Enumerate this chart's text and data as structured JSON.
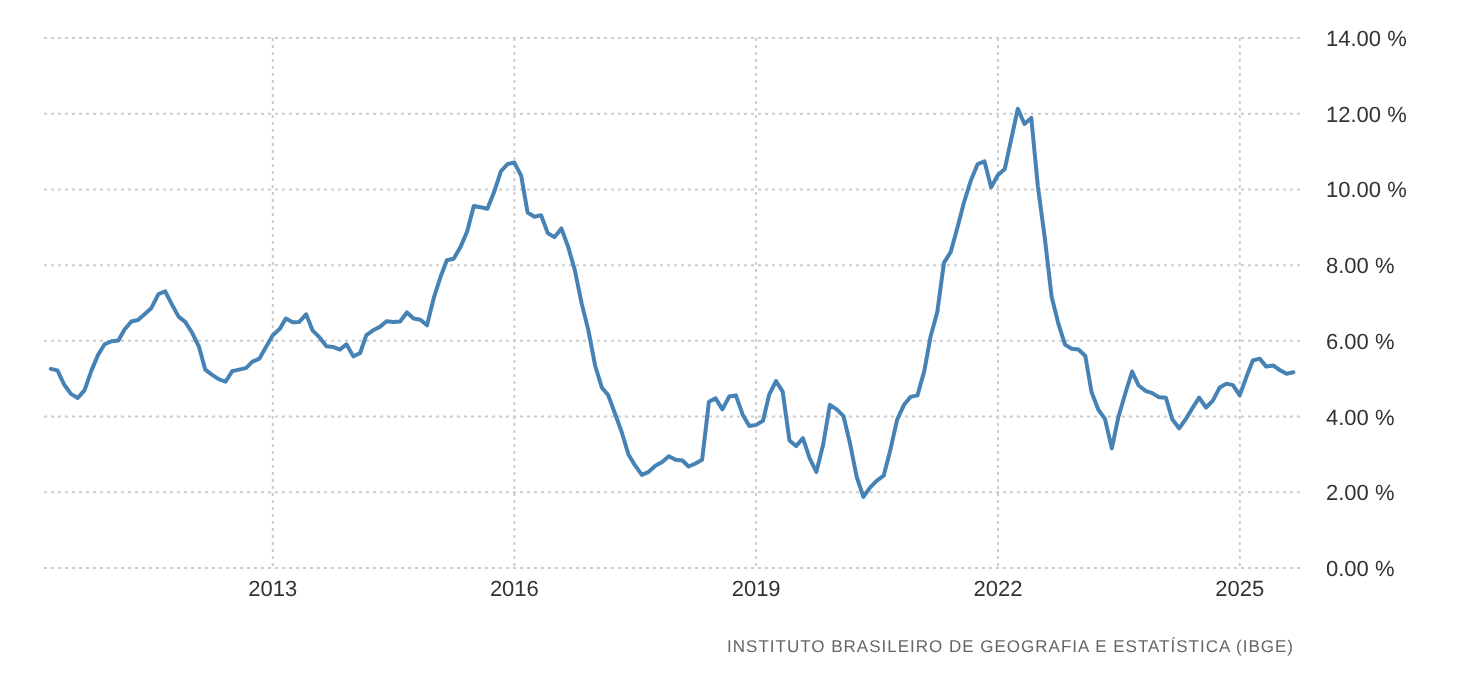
{
  "chart_data": {
    "type": "line",
    "annotations": [
      "INSTITUTO BRASILEIRO DE GEOGRAFIA E ESTATÍSTICA (IBGE)"
    ],
    "xlim": [
      "2010-03",
      "2025-10"
    ],
    "xticks": [
      {
        "value": "2013-01",
        "label": "2013"
      },
      {
        "value": "2016-01",
        "label": "2016"
      },
      {
        "value": "2019-01",
        "label": "2019"
      },
      {
        "value": "2022-01",
        "label": "2022"
      },
      {
        "value": "2025-01",
        "label": "2025"
      }
    ],
    "ylim": [
      0,
      14
    ],
    "yticks": [
      {
        "value": 0,
        "label": "0.00 %"
      },
      {
        "value": 2,
        "label": "2.00 %"
      },
      {
        "value": 4,
        "label": "4.00 %"
      },
      {
        "value": 6,
        "label": "6.00 %"
      },
      {
        "value": 8,
        "label": "8.00 %"
      },
      {
        "value": 10,
        "label": "10.00 %"
      },
      {
        "value": 12,
        "label": "12.00 %"
      },
      {
        "value": 14,
        "label": "14.00 %"
      }
    ],
    "grid": true,
    "line_style": "solid",
    "marker": "none",
    "x": [
      "2010-04",
      "2010-05",
      "2010-06",
      "2010-07",
      "2010-08",
      "2010-09",
      "2010-10",
      "2010-11",
      "2010-12",
      "2011-01",
      "2011-02",
      "2011-03",
      "2011-04",
      "2011-05",
      "2011-06",
      "2011-07",
      "2011-08",
      "2011-09",
      "2011-10",
      "2011-11",
      "2011-12",
      "2012-01",
      "2012-02",
      "2012-03",
      "2012-04",
      "2012-05",
      "2012-06",
      "2012-07",
      "2012-08",
      "2012-09",
      "2012-10",
      "2012-11",
      "2012-12",
      "2013-01",
      "2013-02",
      "2013-03",
      "2013-04",
      "2013-05",
      "2013-06",
      "2013-07",
      "2013-08",
      "2013-09",
      "2013-10",
      "2013-11",
      "2013-12",
      "2014-01",
      "2014-02",
      "2014-03",
      "2014-04",
      "2014-05",
      "2014-06",
      "2014-07",
      "2014-08",
      "2014-09",
      "2014-10",
      "2014-11",
      "2014-12",
      "2015-01",
      "2015-02",
      "2015-03",
      "2015-04",
      "2015-05",
      "2015-06",
      "2015-07",
      "2015-08",
      "2015-09",
      "2015-10",
      "2015-11",
      "2015-12",
      "2016-01",
      "2016-02",
      "2016-03",
      "2016-04",
      "2016-05",
      "2016-06",
      "2016-07",
      "2016-08",
      "2016-09",
      "2016-10",
      "2016-11",
      "2016-12",
      "2017-01",
      "2017-02",
      "2017-03",
      "2017-04",
      "2017-05",
      "2017-06",
      "2017-07",
      "2017-08",
      "2017-09",
      "2017-10",
      "2017-11",
      "2017-12",
      "2018-01",
      "2018-02",
      "2018-03",
      "2018-04",
      "2018-05",
      "2018-06",
      "2018-07",
      "2018-08",
      "2018-09",
      "2018-10",
      "2018-11",
      "2018-12",
      "2019-01",
      "2019-02",
      "2019-03",
      "2019-04",
      "2019-05",
      "2019-06",
      "2019-07",
      "2019-08",
      "2019-09",
      "2019-10",
      "2019-11",
      "2019-12",
      "2020-01",
      "2020-02",
      "2020-03",
      "2020-04",
      "2020-05",
      "2020-06",
      "2020-07",
      "2020-08",
      "2020-09",
      "2020-10",
      "2020-11",
      "2020-12",
      "2021-01",
      "2021-02",
      "2021-03",
      "2021-04",
      "2021-05",
      "2021-06",
      "2021-07",
      "2021-08",
      "2021-09",
      "2021-10",
      "2021-11",
      "2021-12",
      "2022-01",
      "2022-02",
      "2022-03",
      "2022-04",
      "2022-05",
      "2022-06",
      "2022-07",
      "2022-08",
      "2022-09",
      "2022-10",
      "2022-11",
      "2022-12",
      "2023-01",
      "2023-02",
      "2023-03",
      "2023-04",
      "2023-05",
      "2023-06",
      "2023-07",
      "2023-08",
      "2023-09",
      "2023-10",
      "2023-11",
      "2023-12",
      "2024-01",
      "2024-02",
      "2024-03",
      "2024-04",
      "2024-05",
      "2024-06",
      "2024-07",
      "2024-08",
      "2024-09",
      "2024-10",
      "2024-11",
      "2024-12",
      "2025-01",
      "2025-02",
      "2025-03",
      "2025-04",
      "2025-05",
      "2025-06",
      "2025-07",
      "2025-08",
      "2025-09"
    ],
    "series": [
      {
        "color": "#4682b4",
        "values": [
          5.26,
          5.22,
          4.84,
          4.6,
          4.49,
          4.7,
          5.2,
          5.63,
          5.91,
          5.99,
          6.01,
          6.3,
          6.51,
          6.55,
          6.71,
          6.87,
          7.23,
          7.31,
          6.97,
          6.64,
          6.5,
          6.22,
          5.85,
          5.24,
          5.1,
          4.99,
          4.92,
          5.2,
          5.24,
          5.28,
          5.45,
          5.53,
          5.84,
          6.15,
          6.31,
          6.59,
          6.49,
          6.5,
          6.7,
          6.27,
          6.09,
          5.86,
          5.84,
          5.77,
          5.91,
          5.59,
          5.68,
          6.15,
          6.28,
          6.37,
          6.52,
          6.5,
          6.51,
          6.75,
          6.59,
          6.56,
          6.41,
          7.14,
          7.7,
          8.13,
          8.17,
          8.47,
          8.89,
          9.56,
          9.53,
          9.49,
          9.93,
          10.48,
          10.67,
          10.71,
          10.36,
          9.39,
          9.28,
          9.32,
          8.84,
          8.74,
          8.97,
          8.48,
          7.87,
          6.99,
          6.29,
          5.35,
          4.76,
          4.57,
          4.08,
          3.6,
          3.0,
          2.71,
          2.46,
          2.54,
          2.7,
          2.8,
          2.95,
          2.86,
          2.84,
          2.68,
          2.76,
          2.86,
          4.39,
          4.48,
          4.19,
          4.53,
          4.56,
          4.05,
          3.75,
          3.78,
          3.89,
          4.58,
          4.94,
          4.66,
          3.37,
          3.22,
          3.43,
          2.89,
          2.54,
          3.27,
          4.31,
          4.19,
          4.01,
          3.3,
          2.4,
          1.88,
          2.13,
          2.31,
          2.44,
          3.14,
          3.92,
          4.31,
          4.52,
          4.56,
          5.2,
          6.1,
          6.76,
          8.06,
          8.35,
          8.99,
          9.68,
          10.25,
          10.67,
          10.74,
          10.06,
          10.38,
          10.54,
          11.3,
          12.13,
          11.73,
          11.89,
          10.07,
          8.73,
          7.17,
          6.47,
          5.9,
          5.79,
          5.77,
          5.6,
          4.65,
          4.18,
          3.94,
          3.16,
          3.99,
          4.61,
          5.19,
          4.82,
          4.68,
          4.62,
          4.51,
          4.5,
          3.93,
          3.69,
          3.93,
          4.23,
          4.5,
          4.24,
          4.42,
          4.76,
          4.87,
          4.83,
          4.56,
          5.06,
          5.48,
          5.53,
          5.32,
          5.35,
          5.23,
          5.13,
          5.17
        ]
      }
    ]
  }
}
